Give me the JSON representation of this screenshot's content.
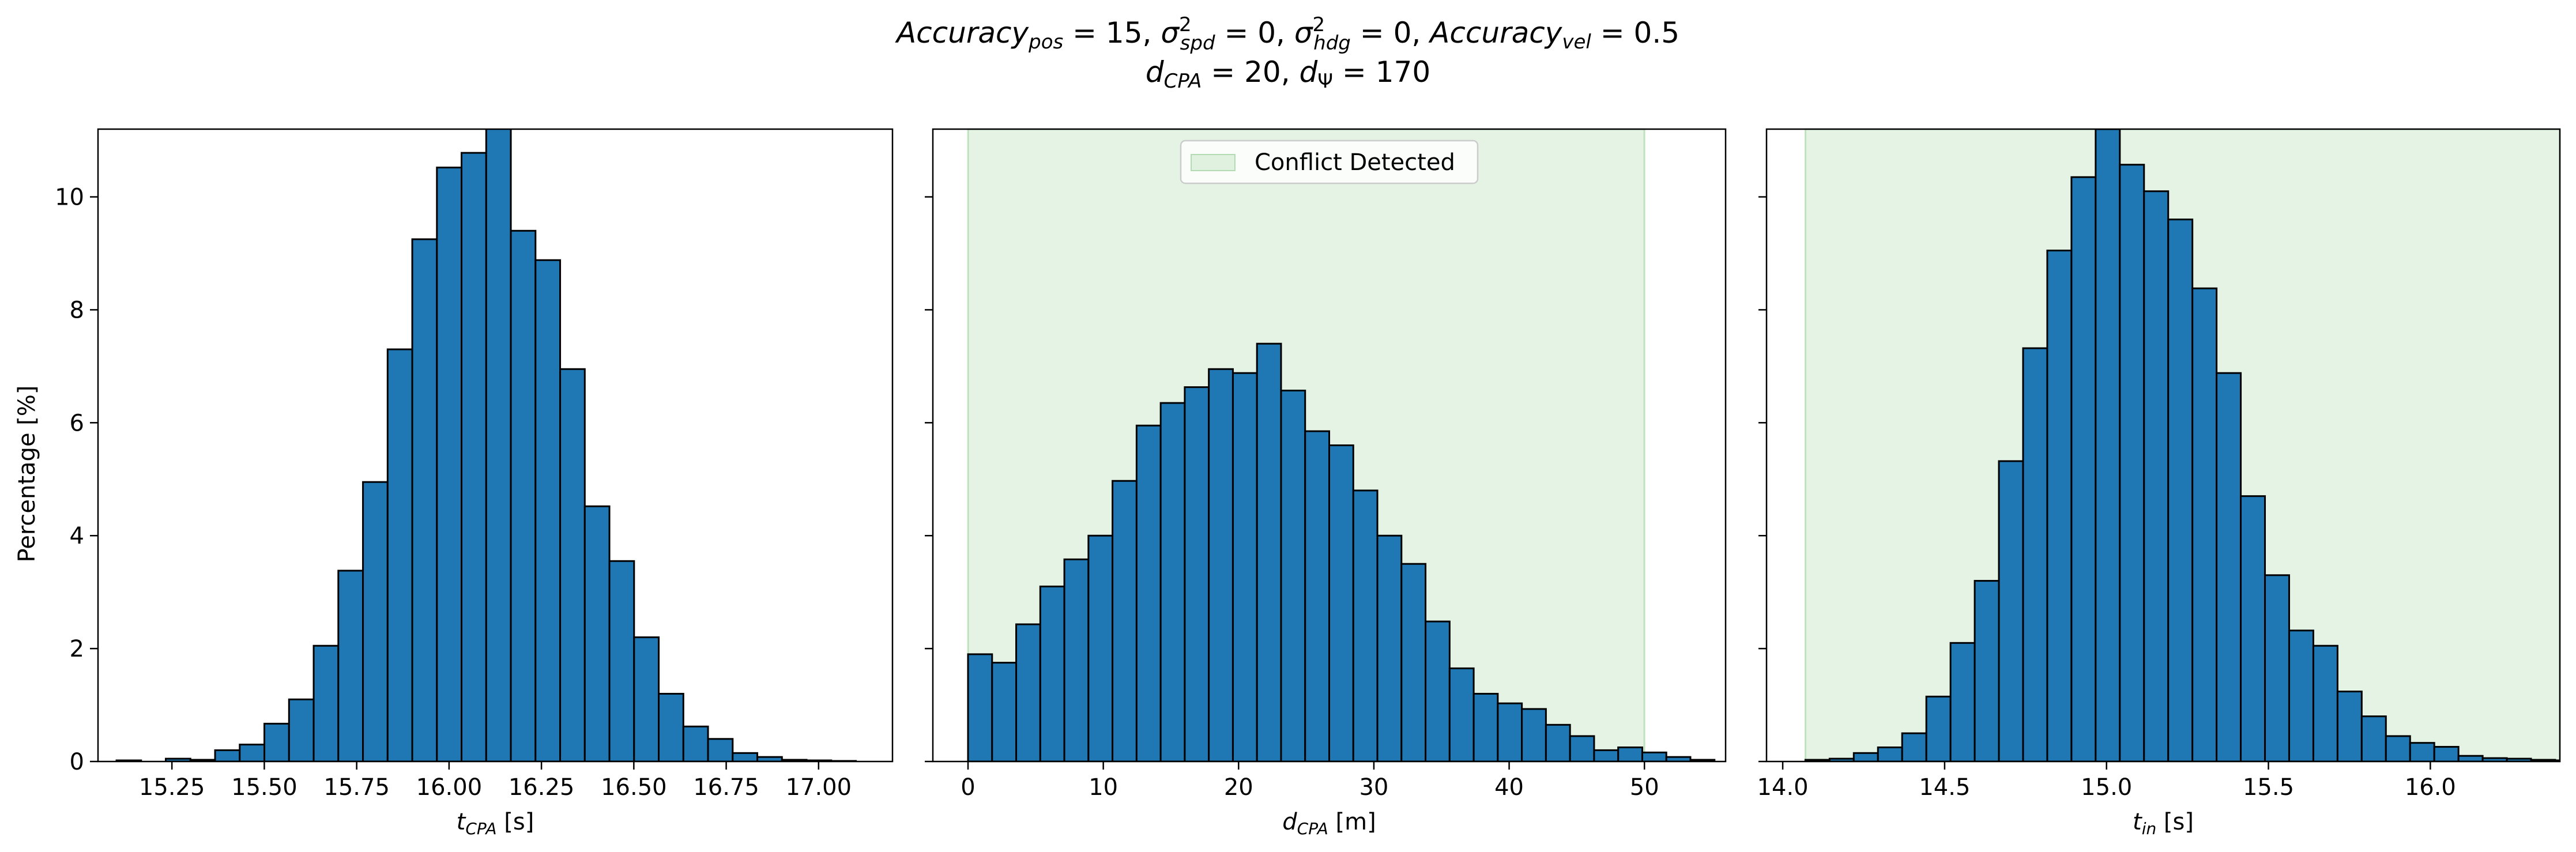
{
  "title": {
    "line1": {
      "acc_pos_base": "Accuracy",
      "acc_pos_sub": "pos",
      "acc_pos_val": " = 15, ",
      "sigma": "σ",
      "spd_sup": "2",
      "spd_sub": "spd",
      "spd_val": " = 0, ",
      "hdg_sup": "2",
      "hdg_sub": "hdg",
      "hdg_val": " = 0, ",
      "acc_vel_base": "Accuracy",
      "acc_vel_sub": "vel",
      "acc_vel_val": " = 0.5"
    },
    "line2": {
      "d_base": "d",
      "cpa_sub": "CPA",
      "cpa_val": " = 20, ",
      "psi_base": "d",
      "psi_sub": "Ψ",
      "psi_val": " = 170"
    }
  },
  "ylabel": "Percentage [%]",
  "legend_label": "Conflict Detected",
  "colors": {
    "bar": "#1f77b4",
    "edge": "#000000",
    "shade": "#2ca02c",
    "shade_alpha": 0.12
  },
  "chart_data": [
    {
      "type": "bar",
      "xlabel": {
        "base": "t",
        "sub": "CPA",
        "unit": " [s]"
      },
      "xlim": [
        15.05,
        17.2
      ],
      "ylim": [
        0,
        11.2
      ],
      "xticks": [
        15.25,
        15.5,
        15.75,
        16.0,
        16.25,
        16.5,
        16.75,
        17.0
      ],
      "xtick_labels": [
        "15.25",
        "15.50",
        "15.75",
        "16.00",
        "16.25",
        "16.50",
        "16.75",
        "17.00"
      ],
      "yticks": [
        0,
        2,
        4,
        6,
        8,
        10
      ],
      "ytick_labels": [
        "0",
        "2",
        "4",
        "6",
        "8",
        "10"
      ],
      "bin_start": 15.1,
      "bin_width": 0.0667,
      "values": [
        0.02,
        0.0,
        0.05,
        0.03,
        0.2,
        0.3,
        0.67,
        1.1,
        2.05,
        3.38,
        4.95,
        7.3,
        9.25,
        10.52,
        10.78,
        11.25,
        9.4,
        8.88,
        6.95,
        4.52,
        3.55,
        2.2,
        1.2,
        0.62,
        0.4,
        0.15,
        0.08,
        0.03,
        0.02,
        0.01
      ],
      "shade": null
    },
    {
      "type": "bar",
      "xlabel": {
        "base": "d",
        "sub": "CPA",
        "unit": " [m]"
      },
      "xlim": [
        -2.6,
        56.0
      ],
      "ylim": [
        0,
        11.2
      ],
      "xticks": [
        0,
        10,
        20,
        30,
        40,
        50
      ],
      "xtick_labels": [
        "0",
        "10",
        "20",
        "30",
        "40",
        "50"
      ],
      "yticks": [
        0,
        2,
        4,
        6,
        8,
        10
      ],
      "ytick_labels": [
        "",
        "",
        "",
        "",
        "",
        ""
      ],
      "bin_start": 0,
      "bin_width": 1.78,
      "values": [
        1.9,
        1.75,
        2.43,
        3.1,
        3.58,
        4.0,
        4.97,
        5.95,
        6.35,
        6.63,
        6.95,
        6.88,
        7.4,
        6.57,
        5.85,
        5.6,
        4.8,
        4.0,
        3.5,
        2.48,
        1.65,
        1.2,
        1.03,
        0.93,
        0.65,
        0.45,
        0.2,
        0.25,
        0.16,
        0.08,
        0.03
      ],
      "shade": [
        0,
        50
      ],
      "legend": "upper center"
    },
    {
      "type": "bar",
      "xlabel": {
        "base": "t",
        "sub": "in",
        "unit": " [s]"
      },
      "xlim": [
        13.95,
        16.4
      ],
      "ylim": [
        0,
        11.2
      ],
      "xticks": [
        14.0,
        14.5,
        15.0,
        15.5,
        16.0
      ],
      "xtick_labels": [
        "14.0",
        "14.5",
        "15.0",
        "15.5",
        "16.0"
      ],
      "yticks": [
        0,
        2,
        4,
        6,
        8,
        10
      ],
      "ytick_labels": [
        "",
        "",
        "",
        "",
        "",
        ""
      ],
      "bin_start": 14.07,
      "bin_width": 0.0747,
      "values": [
        0.03,
        0.05,
        0.15,
        0.25,
        0.5,
        1.15,
        2.1,
        3.2,
        5.32,
        7.32,
        9.05,
        10.35,
        11.2,
        10.57,
        10.1,
        9.6,
        8.38,
        6.88,
        4.7,
        3.3,
        2.32,
        2.05,
        1.24,
        0.8,
        0.45,
        0.33,
        0.26,
        0.1,
        0.06,
        0.05,
        0.03,
        0.02
      ],
      "shade": [
        14.07,
        16.4
      ]
    }
  ]
}
